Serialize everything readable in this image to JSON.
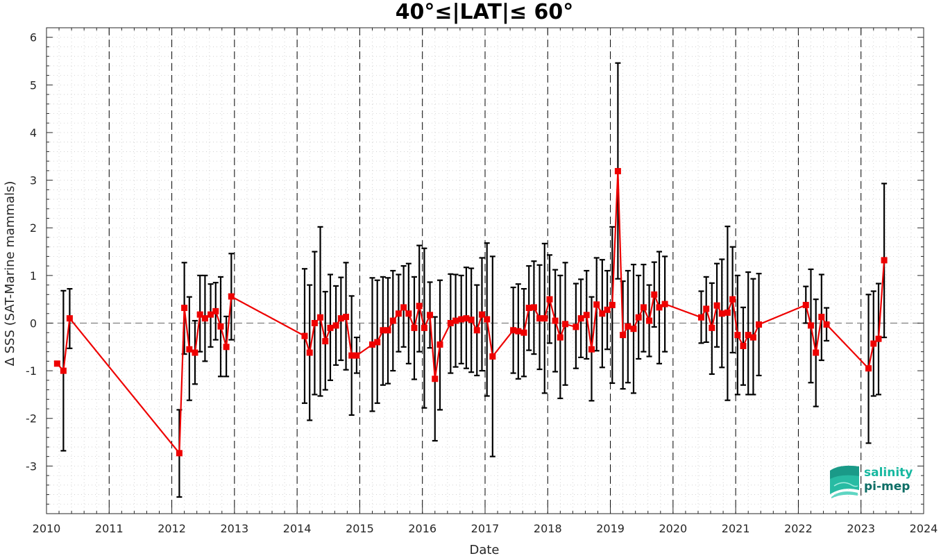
{
  "chart_data": {
    "type": "line",
    "title": "40°≤|LAT|≤ 60°",
    "xlabel": "Date",
    "ylabel": "Δ SSS (SAT-Marine mammals)",
    "xlim": [
      2010,
      2024
    ],
    "ylim": [
      -4,
      6.2
    ],
    "x_ticks": [
      "2010",
      "2011",
      "2012",
      "2013",
      "2014",
      "2015",
      "2016",
      "2017",
      "2018",
      "2019",
      "2020",
      "2021",
      "2022",
      "2023",
      "2024"
    ],
    "y_ticks": [
      "6",
      "5",
      "4",
      "3",
      "2",
      "1",
      "0",
      "-1",
      "-2",
      "-3"
    ],
    "year_boundaries": [
      2011,
      2012,
      2013,
      2014,
      2015,
      2016,
      2017,
      2018,
      2019,
      2020,
      2021,
      2022,
      2023
    ],
    "zero_line": 0,
    "grid": "dotted minor",
    "series": [
      {
        "color": "#ee0000",
        "errorbar_color": "#000000",
        "points": [
          {
            "x": 2010.17,
            "y": -0.85,
            "lo": -0.85,
            "hi": -0.85
          },
          {
            "x": 2010.27,
            "y": -1.0,
            "lo": -2.68,
            "hi": 0.68
          },
          {
            "x": 2010.37,
            "y": 0.1,
            "lo": -0.53,
            "hi": 0.72
          },
          {
            "x": 2012.12,
            "y": -2.73,
            "lo": -3.65,
            "hi": -1.82
          },
          {
            "x": 2012.2,
            "y": 0.32,
            "lo": -0.65,
            "hi": 1.27
          },
          {
            "x": 2012.28,
            "y": -0.55,
            "lo": -1.62,
            "hi": 0.55
          },
          {
            "x": 2012.37,
            "y": -0.62,
            "lo": -1.28,
            "hi": 0.05
          },
          {
            "x": 2012.45,
            "y": 0.18,
            "lo": -0.6,
            "hi": 1.0
          },
          {
            "x": 2012.53,
            "y": 0.1,
            "lo": -0.8,
            "hi": 1.0
          },
          {
            "x": 2012.62,
            "y": 0.18,
            "lo": -0.5,
            "hi": 0.82
          },
          {
            "x": 2012.7,
            "y": 0.25,
            "lo": -0.35,
            "hi": 0.85
          },
          {
            "x": 2012.78,
            "y": -0.07,
            "lo": -1.12,
            "hi": 0.97
          },
          {
            "x": 2012.87,
            "y": -0.5,
            "lo": -1.12,
            "hi": 0.14
          },
          {
            "x": 2012.95,
            "y": 0.56,
            "lo": -0.35,
            "hi": 1.46
          },
          {
            "x": 2014.12,
            "y": -0.27,
            "lo": -1.68,
            "hi": 1.14
          },
          {
            "x": 2014.2,
            "y": -0.62,
            "lo": -2.04,
            "hi": 0.8
          },
          {
            "x": 2014.28,
            "y": 0.0,
            "lo": -1.5,
            "hi": 1.5
          },
          {
            "x": 2014.37,
            "y": 0.12,
            "lo": -1.53,
            "hi": 2.02
          },
          {
            "x": 2014.45,
            "y": -0.38,
            "lo": -1.4,
            "hi": 0.66
          },
          {
            "x": 2014.53,
            "y": -0.1,
            "lo": -1.2,
            "hi": 1.02
          },
          {
            "x": 2014.62,
            "y": -0.05,
            "lo": -0.88,
            "hi": 0.78
          },
          {
            "x": 2014.7,
            "y": 0.1,
            "lo": -0.78,
            "hi": 0.96
          },
          {
            "x": 2014.78,
            "y": 0.13,
            "lo": -0.98,
            "hi": 1.27
          },
          {
            "x": 2014.87,
            "y": -0.68,
            "lo": -1.93,
            "hi": 0.57
          },
          {
            "x": 2014.95,
            "y": -0.68,
            "lo": -1.05,
            "hi": -0.3
          },
          {
            "x": 2015.2,
            "y": -0.45,
            "lo": -1.85,
            "hi": 0.95
          },
          {
            "x": 2015.28,
            "y": -0.4,
            "lo": -1.68,
            "hi": 0.9
          },
          {
            "x": 2015.37,
            "y": -0.15,
            "lo": -1.3,
            "hi": 0.97
          },
          {
            "x": 2015.45,
            "y": -0.15,
            "lo": -1.27,
            "hi": 0.95
          },
          {
            "x": 2015.53,
            "y": 0.05,
            "lo": -1.0,
            "hi": 1.1
          },
          {
            "x": 2015.62,
            "y": 0.2,
            "lo": -0.6,
            "hi": 1.02
          },
          {
            "x": 2015.7,
            "y": 0.33,
            "lo": -0.5,
            "hi": 1.2
          },
          {
            "x": 2015.78,
            "y": 0.2,
            "lo": -0.85,
            "hi": 1.25
          },
          {
            "x": 2015.87,
            "y": -0.1,
            "lo": -1.18,
            "hi": 0.97
          },
          {
            "x": 2015.95,
            "y": 0.36,
            "lo": -0.6,
            "hi": 1.63
          },
          {
            "x": 2016.03,
            "y": -0.1,
            "lo": -1.78,
            "hi": 1.57
          },
          {
            "x": 2016.12,
            "y": 0.17,
            "lo": -0.52,
            "hi": 0.86
          },
          {
            "x": 2016.2,
            "y": -1.17,
            "lo": -2.47,
            "hi": 0.13
          },
          {
            "x": 2016.28,
            "y": -0.45,
            "lo": -1.82,
            "hi": 0.9
          },
          {
            "x": 2016.45,
            "y": 0.0,
            "lo": -1.05,
            "hi": 1.03
          },
          {
            "x": 2016.53,
            "y": 0.05,
            "lo": -0.92,
            "hi": 1.02
          },
          {
            "x": 2016.62,
            "y": 0.08,
            "lo": -0.85,
            "hi": 1.0
          },
          {
            "x": 2016.7,
            "y": 0.1,
            "lo": -0.95,
            "hi": 1.17
          },
          {
            "x": 2016.78,
            "y": 0.07,
            "lo": -1.03,
            "hi": 1.15
          },
          {
            "x": 2016.87,
            "y": -0.15,
            "lo": -1.1,
            "hi": 0.8
          },
          {
            "x": 2016.95,
            "y": 0.18,
            "lo": -1.0,
            "hi": 1.37
          },
          {
            "x": 2017.03,
            "y": 0.08,
            "lo": -1.53,
            "hi": 1.68
          },
          {
            "x": 2017.12,
            "y": -0.7,
            "lo": -2.8,
            "hi": 1.4
          },
          {
            "x": 2017.45,
            "y": -0.15,
            "lo": -1.05,
            "hi": 0.75
          },
          {
            "x": 2017.53,
            "y": -0.17,
            "lo": -1.17,
            "hi": 0.82
          },
          {
            "x": 2017.62,
            "y": -0.2,
            "lo": -1.12,
            "hi": 0.72
          },
          {
            "x": 2017.7,
            "y": 0.32,
            "lo": -0.57,
            "hi": 1.2
          },
          {
            "x": 2017.78,
            "y": 0.33,
            "lo": -0.65,
            "hi": 1.3
          },
          {
            "x": 2017.87,
            "y": 0.1,
            "lo": -0.97,
            "hi": 1.22
          },
          {
            "x": 2017.95,
            "y": 0.1,
            "lo": -1.47,
            "hi": 1.67
          },
          {
            "x": 2018.03,
            "y": 0.5,
            "lo": -0.42,
            "hi": 1.43
          },
          {
            "x": 2018.12,
            "y": 0.05,
            "lo": -1.02,
            "hi": 1.12
          },
          {
            "x": 2018.2,
            "y": -0.3,
            "lo": -1.58,
            "hi": 1.0
          },
          {
            "x": 2018.28,
            "y": -0.02,
            "lo": -1.3,
            "hi": 1.27
          },
          {
            "x": 2018.45,
            "y": -0.08,
            "lo": -0.95,
            "hi": 0.83
          },
          {
            "x": 2018.53,
            "y": 0.1,
            "lo": -0.72,
            "hi": 0.92
          },
          {
            "x": 2018.62,
            "y": 0.17,
            "lo": -0.75,
            "hi": 1.1
          },
          {
            "x": 2018.7,
            "y": -0.55,
            "lo": -1.63,
            "hi": 0.55
          },
          {
            "x": 2018.78,
            "y": 0.39,
            "lo": -0.58,
            "hi": 1.37
          },
          {
            "x": 2018.87,
            "y": 0.2,
            "lo": -0.93,
            "hi": 1.33
          },
          {
            "x": 2018.95,
            "y": 0.28,
            "lo": -0.55,
            "hi": 1.1
          },
          {
            "x": 2019.03,
            "y": 0.38,
            "lo": -1.26,
            "hi": 2.02
          },
          {
            "x": 2019.12,
            "y": 3.19,
            "lo": 0.93,
            "hi": 5.46
          },
          {
            "x": 2019.2,
            "y": -0.25,
            "lo": -1.38,
            "hi": 0.88
          },
          {
            "x": 2019.28,
            "y": -0.07,
            "lo": -1.25,
            "hi": 1.1
          },
          {
            "x": 2019.37,
            "y": -0.12,
            "lo": -1.47,
            "hi": 1.23
          },
          {
            "x": 2019.45,
            "y": 0.12,
            "lo": -0.75,
            "hi": 1.0
          },
          {
            "x": 2019.53,
            "y": 0.33,
            "lo": -0.6,
            "hi": 1.23
          },
          {
            "x": 2019.62,
            "y": 0.05,
            "lo": -0.7,
            "hi": 0.8
          },
          {
            "x": 2019.7,
            "y": 0.6,
            "lo": -0.08,
            "hi": 1.28
          },
          {
            "x": 2019.78,
            "y": 0.33,
            "lo": -0.85,
            "hi": 1.5
          },
          {
            "x": 2019.87,
            "y": 0.4,
            "lo": -0.6,
            "hi": 1.4
          },
          {
            "x": 2020.45,
            "y": 0.12,
            "lo": -0.42,
            "hi": 0.67
          },
          {
            "x": 2020.53,
            "y": 0.3,
            "lo": -0.4,
            "hi": 0.97
          },
          {
            "x": 2020.62,
            "y": -0.1,
            "lo": -1.07,
            "hi": 0.84
          },
          {
            "x": 2020.7,
            "y": 0.37,
            "lo": -0.5,
            "hi": 1.25
          },
          {
            "x": 2020.78,
            "y": 0.2,
            "lo": -0.93,
            "hi": 1.34
          },
          {
            "x": 2020.87,
            "y": 0.22,
            "lo": -1.62,
            "hi": 2.03
          },
          {
            "x": 2020.95,
            "y": 0.5,
            "lo": -0.62,
            "hi": 1.6
          },
          {
            "x": 2021.03,
            "y": -0.25,
            "lo": -1.5,
            "hi": 1.0
          },
          {
            "x": 2021.12,
            "y": -0.48,
            "lo": -1.3,
            "hi": 0.33
          },
          {
            "x": 2021.2,
            "y": -0.25,
            "lo": -1.5,
            "hi": 1.07
          },
          {
            "x": 2021.28,
            "y": -0.3,
            "lo": -1.5,
            "hi": 0.93
          },
          {
            "x": 2021.37,
            "y": -0.03,
            "lo": -1.1,
            "hi": 1.04
          },
          {
            "x": 2022.12,
            "y": 0.38,
            "lo": 0.0,
            "hi": 0.77
          },
          {
            "x": 2022.2,
            "y": -0.05,
            "lo": -1.25,
            "hi": 1.13
          },
          {
            "x": 2022.28,
            "y": -0.62,
            "lo": -1.75,
            "hi": 0.5
          },
          {
            "x": 2022.37,
            "y": 0.13,
            "lo": -0.78,
            "hi": 1.02
          },
          {
            "x": 2022.45,
            "y": -0.03,
            "lo": -0.37,
            "hi": 0.32
          },
          {
            "x": 2023.12,
            "y": -0.95,
            "lo": -2.52,
            "hi": 0.6
          },
          {
            "x": 2023.2,
            "y": -0.43,
            "lo": -1.53,
            "hi": 0.67
          },
          {
            "x": 2023.28,
            "y": -0.33,
            "lo": -1.5,
            "hi": 0.83
          },
          {
            "x": 2023.37,
            "y": 1.32,
            "lo": -0.3,
            "hi": 2.93
          }
        ]
      }
    ]
  },
  "logo": {
    "line1": "salinity",
    "line2": "pi-mep",
    "color1": "#17b8a0",
    "color2": "#0e6e66"
  }
}
